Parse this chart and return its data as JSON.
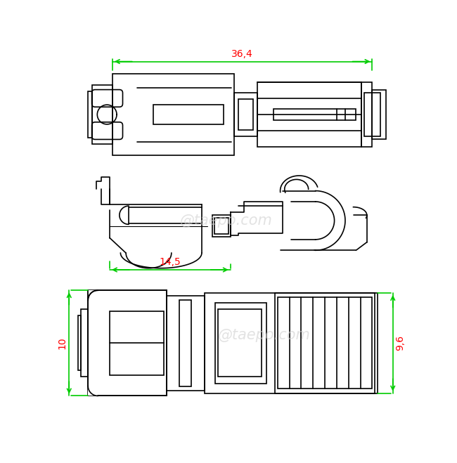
{
  "bg_color": "#ffffff",
  "line_color": "#000000",
  "dim_color": "#00cc00",
  "text_color": "#ff0000",
  "watermark": "@taepo.com",
  "dim_36_4": "36,4",
  "dim_14_5": "14,5",
  "dim_10": "10",
  "dim_9_6": "9,6"
}
